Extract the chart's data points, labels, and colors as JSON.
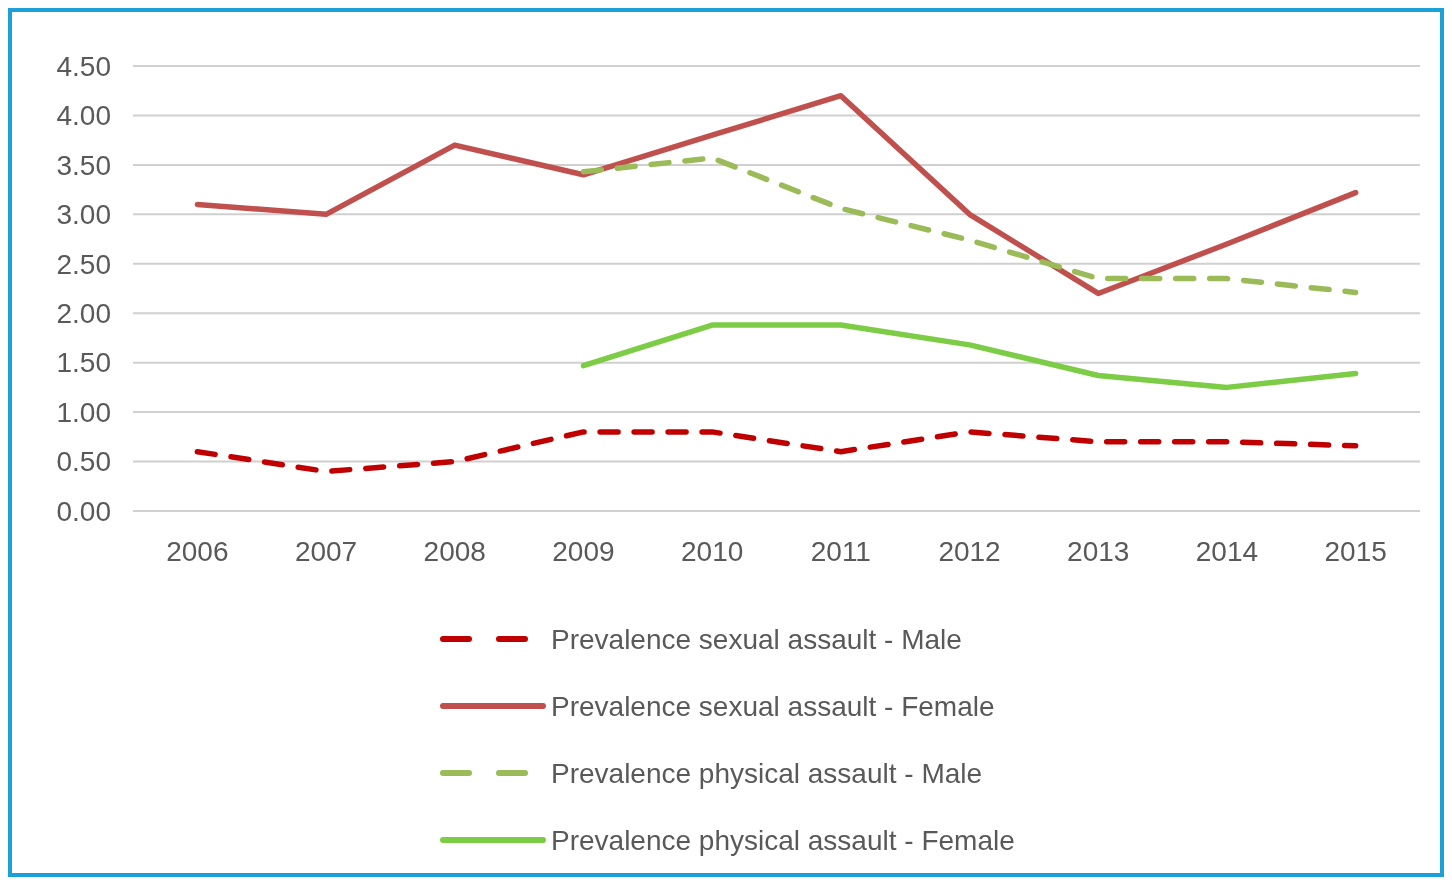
{
  "chart_data": {
    "type": "line",
    "categories": [
      "2006",
      "2007",
      "2008",
      "2009",
      "2010",
      "2011",
      "2012",
      "2013",
      "2014",
      "2015"
    ],
    "ylim": [
      0,
      4.5
    ],
    "yticks": [
      {
        "value": 0,
        "label": "0.00"
      },
      {
        "value": 0.5,
        "label": "0.50"
      },
      {
        "value": 1,
        "label": "1.00"
      },
      {
        "value": 1.5,
        "label": "1.50"
      },
      {
        "value": 2,
        "label": "2.00"
      },
      {
        "value": 2.5,
        "label": "2.50"
      },
      {
        "value": 3,
        "label": "3.00"
      },
      {
        "value": 3.5,
        "label": "3.50"
      },
      {
        "value": 4,
        "label": "4.00"
      },
      {
        "value": 4.5,
        "label": "4.50"
      }
    ],
    "grid": "y",
    "legend": "bottom",
    "marker": "none",
    "series": [
      {
        "name": "Prevalence sexual assault - Male",
        "color": "#c00000",
        "line_style": "dashed",
        "values": [
          0.6,
          0.4,
          0.5,
          0.8,
          0.8,
          0.6,
          0.8,
          0.7,
          0.7,
          0.66
        ]
      },
      {
        "name": "Prevalence sexual assault - Female",
        "color": "#c0504d",
        "line_style": "solid",
        "values": [
          3.1,
          3.0,
          3.7,
          3.4,
          3.8,
          4.2,
          3.0,
          2.2,
          2.7,
          3.22
        ]
      },
      {
        "name": "Prevalence physical assault - Male",
        "color": "#9bbb59",
        "line_style": "dashed",
        "values": [
          null,
          null,
          null,
          3.43,
          3.57,
          3.06,
          2.74,
          2.35,
          2.35,
          2.21
        ]
      },
      {
        "name": "Prevalence physical assault - Female",
        "color": "#7ccc45",
        "line_style": "solid",
        "values": [
          null,
          null,
          null,
          1.47,
          1.88,
          1.88,
          1.68,
          1.37,
          1.25,
          1.39
        ]
      }
    ]
  }
}
